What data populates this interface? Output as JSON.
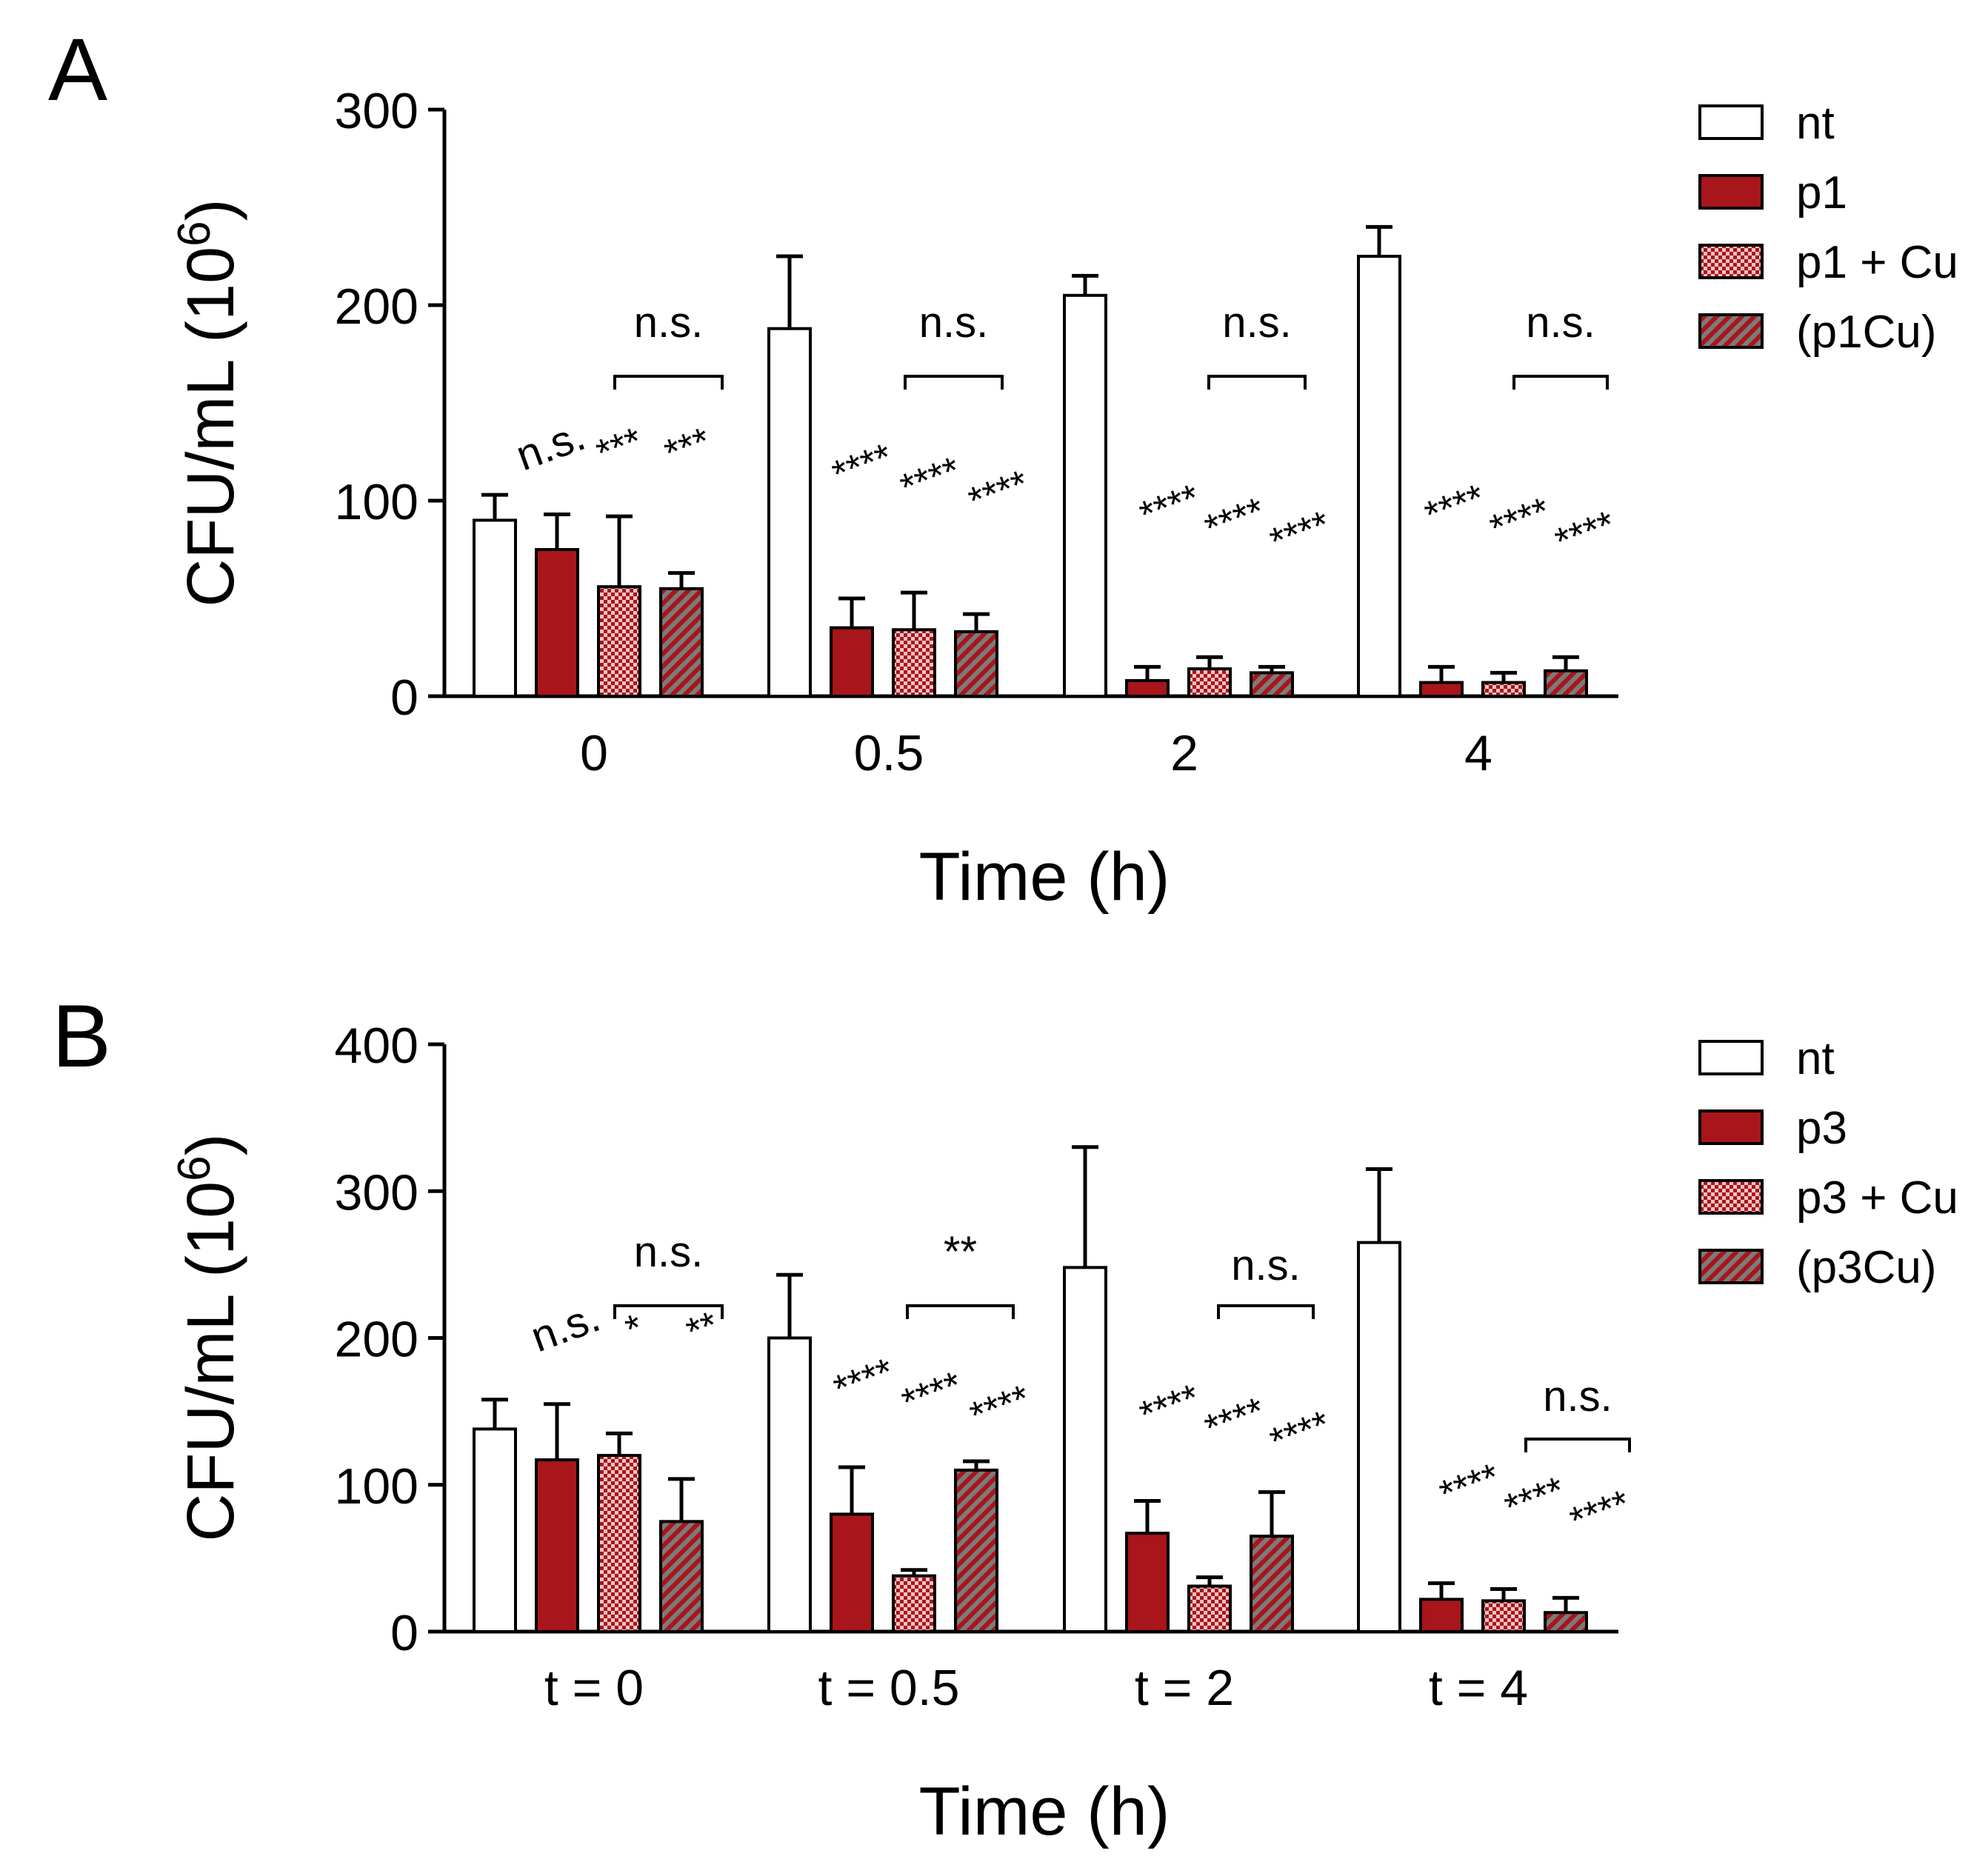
{
  "figure": {
    "panels": [
      "A",
      "B"
    ]
  },
  "colors": {
    "nt": "#ffffff",
    "treated": "#a8151b",
    "check_light": "#f4c4c4",
    "stripe_grey": "#7b7b7b",
    "axis": "#000000"
  },
  "chart_data": [
    {
      "panel": "A",
      "type": "bar",
      "categories": [
        "0",
        "0.5",
        "2",
        "4"
      ],
      "xlabel": "Time (h)",
      "ylabel": "CFU/mL (10",
      "ylabel_sup": "6",
      "ylabel_close": ")",
      "ylim": [
        0,
        300
      ],
      "yticks": [
        0,
        100,
        200,
        300
      ],
      "series": [
        {
          "name": "nt",
          "pattern": "white",
          "values": [
            90,
            188,
            205,
            225
          ],
          "errors": [
            13,
            37,
            10,
            15
          ]
        },
        {
          "name": "p1",
          "pattern": "solid",
          "values": [
            75,
            35,
            8,
            7
          ],
          "errors": [
            18,
            15,
            7,
            8
          ]
        },
        {
          "name": "p1 + Cu",
          "pattern": "check",
          "values": [
            56,
            34,
            14,
            7
          ],
          "errors": [
            36,
            19,
            6,
            5
          ]
        },
        {
          "name": "(p1Cu)",
          "pattern": "stripe",
          "values": [
            55,
            33,
            12,
            13
          ],
          "errors": [
            8,
            9,
            3,
            7
          ]
        }
      ],
      "significance": [
        [
          "n.s.",
          "***",
          "***"
        ],
        [
          "****",
          "****",
          "****"
        ],
        [
          "****",
          "****",
          "****"
        ],
        [
          "****",
          "****",
          "****"
        ]
      ],
      "bracket_labels": [
        "n.s.",
        "n.s.",
        "n.s.",
        "n.s."
      ]
    },
    {
      "panel": "B",
      "type": "bar",
      "categories": [
        "t = 0",
        "t = 0.5",
        "t = 2",
        "t = 4"
      ],
      "xlabel": "Time (h)",
      "ylabel": "CFU/mL (10",
      "ylabel_sup": "6",
      "ylabel_close": ")",
      "ylim": [
        0,
        400
      ],
      "yticks": [
        0,
        100,
        200,
        300,
        400
      ],
      "series": [
        {
          "name": "nt",
          "pattern": "white",
          "values": [
            138,
            200,
            248,
            265
          ],
          "errors": [
            20,
            43,
            82,
            50
          ]
        },
        {
          "name": "p3",
          "pattern": "solid",
          "values": [
            117,
            80,
            67,
            22
          ],
          "errors": [
            38,
            32,
            22,
            11
          ]
        },
        {
          "name": "p3 + Cu",
          "pattern": "check",
          "values": [
            120,
            38,
            31,
            21
          ],
          "errors": [
            15,
            4,
            6,
            8
          ]
        },
        {
          "name": "(p3Cu)",
          "pattern": "stripe",
          "values": [
            75,
            110,
            65,
            13
          ],
          "errors": [
            29,
            6,
            30,
            10
          ]
        }
      ],
      "significance": [
        [
          "n.s.",
          "*",
          "**"
        ],
        [
          "****",
          "****",
          "****"
        ],
        [
          "****",
          "****",
          "****"
        ],
        [
          "****",
          "****",
          "****"
        ]
      ],
      "bracket_labels": [
        "n.s.",
        "**",
        "n.s.",
        "n.s."
      ]
    }
  ]
}
